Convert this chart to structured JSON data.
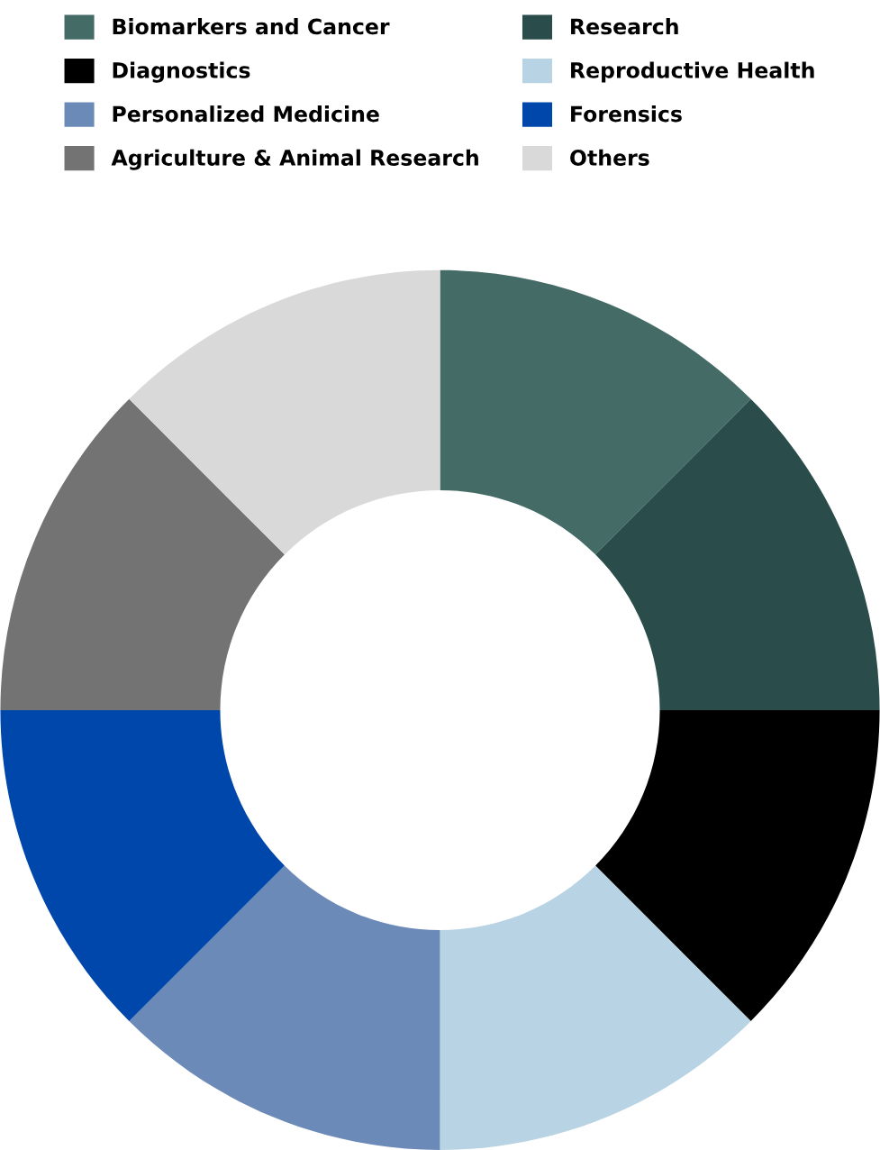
{
  "chart_data": {
    "type": "donut",
    "categories": [
      "Biomarkers and Cancer",
      "Research",
      "Diagnostics",
      "Reproductive Health",
      "Personalized Medicine",
      "Forensics",
      "Agriculture & Animal Research",
      "Others"
    ],
    "values": [
      12.5,
      12.5,
      12.5,
      12.5,
      12.5,
      12.5,
      12.5,
      12.5
    ],
    "colors": [
      "#446b66",
      "#2a4d4b",
      "#000000",
      "#b8d3e4",
      "#6b8ab8",
      "#0047ab",
      "#737373",
      "#d9d9d9"
    ],
    "legend": "top"
  }
}
